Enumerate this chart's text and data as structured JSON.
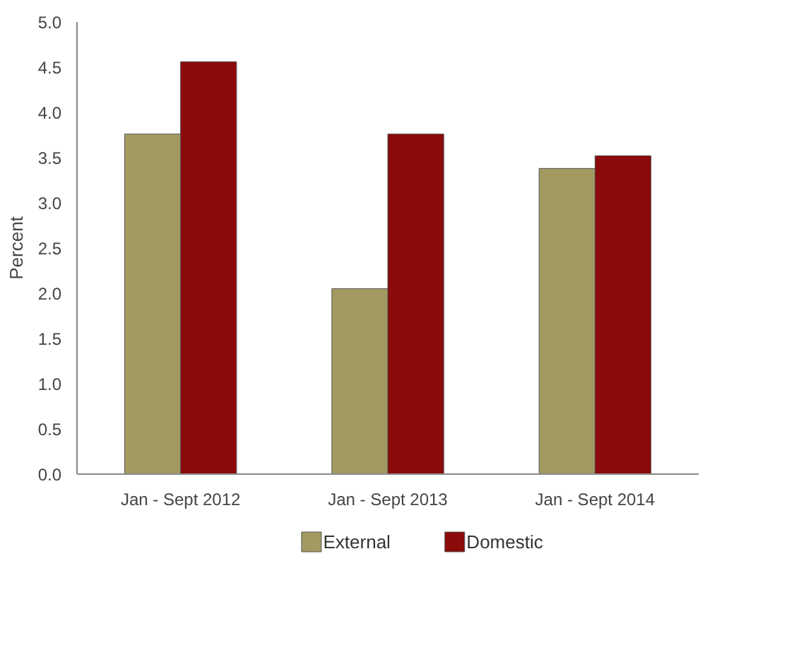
{
  "chart_data": {
    "type": "bar",
    "ylabel": "Percent",
    "categories": [
      "Jan - Sept 2012",
      "Jan - Sept 2013",
      "Jan - Sept 2014"
    ],
    "series": [
      {
        "name": "External",
        "color": "#a39a62",
        "values": [
          3.76,
          2.05,
          3.38
        ]
      },
      {
        "name": "Domestic",
        "color": "#8b0a0a",
        "values": [
          4.56,
          3.76,
          3.52
        ]
      }
    ],
    "ylim": [
      0,
      5
    ],
    "yticks": [
      {
        "value": 0,
        "label": "0.0"
      },
      0.5,
      {
        "value": 1,
        "label": "1.0"
      },
      1.5,
      {
        "value": 2,
        "label": "2.0"
      },
      2.5,
      {
        "value": 3,
        "label": "3.0"
      },
      3.5,
      {
        "value": 4,
        "label": "4.0"
      },
      4.5,
      {
        "value": 5,
        "label": "5.0"
      }
    ],
    "grid": false,
    "legend": "bottom"
  }
}
